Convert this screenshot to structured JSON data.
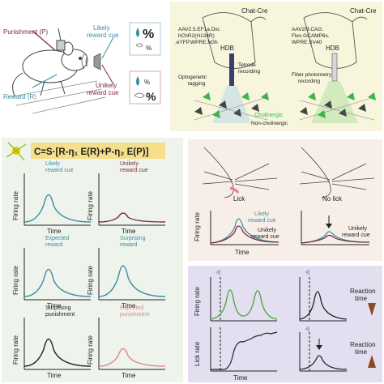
{
  "panel_a": {
    "punishment": "Punishment (P)",
    "reward": "Reward (R)",
    "likely_cue": "Likely\nreward cue",
    "unlikely_cue": "Unikely\nreward cue",
    "percent_big": "%",
    "percent_small": "%"
  },
  "panel_b": {
    "left_title": "Chat-Cre",
    "right_title": "Chat-Cre",
    "left_virus": [
      "AAV2.5.EF1a.Dio.",
      "hChR2(H134R)",
      ".eYFP.WPRE.hGh"
    ],
    "right_virus": [
      "AAV2/9.CAG.",
      "Flex.GCAMP6s.",
      "WPRE.SV40"
    ],
    "hdb_left": "HDB",
    "hdb_right": "HDB",
    "opto_label": [
      "Optogenetic",
      "tagging"
    ],
    "tetrode_label": [
      "Tetrode",
      "recording"
    ],
    "fiber_label": [
      "Fiber photometry",
      "recording"
    ],
    "cholinergic": "Cholinergic",
    "noncholinergic": "Non-cholinergic"
  },
  "panel_c": {
    "equation": "C=S·[R-η₁ E(R)+P-η₂ E(P)]",
    "axis_y": "Firing rate",
    "axis_x": "Time",
    "cells": [
      {
        "label": [
          "Likely",
          "reward cue"
        ],
        "color": "#3a8ea6"
      },
      {
        "label": [
          "Unikely",
          "reward cue"
        ],
        "color": "#7b2a3a"
      },
      {
        "label": [
          "Expected",
          "reward"
        ],
        "color": "#3a8ea6"
      },
      {
        "label": [
          "Surprising",
          "reward"
        ],
        "color": "#3a8ea6"
      },
      {
        "label": [
          "Surprising",
          "punishment"
        ],
        "color": "#222222"
      },
      {
        "label": [
          "Expected",
          "punishment"
        ],
        "color": "#d98a94"
      }
    ]
  },
  "panel_d": {
    "left_top": "Lick",
    "right_top": "No lick",
    "likely": [
      "Likely",
      "reward cue"
    ],
    "unlikely": [
      "Unikely",
      "reward cue"
    ],
    "axis_y": "Firing rate",
    "axis_x": "Time"
  },
  "panel_e": {
    "axis_y_top": "Firing rate",
    "axis_y_bottom": "Lick rate",
    "axis_x": "Time",
    "reaction_top": [
      "Reaction",
      "time"
    ],
    "reaction_bottom": [
      "Reaction",
      "time"
    ]
  },
  "colors": {
    "teal": "#3a8ea6",
    "maroon": "#7b2a3a",
    "pink": "#d98a94",
    "green": "#55a84a",
    "brown": "#8a4a22",
    "panel_b_bg": "#f7f5dc",
    "panel_c_bg": "#eef3ec",
    "panel_d_bg": "#f7efe7",
    "panel_e_bg": "#e3def0"
  }
}
